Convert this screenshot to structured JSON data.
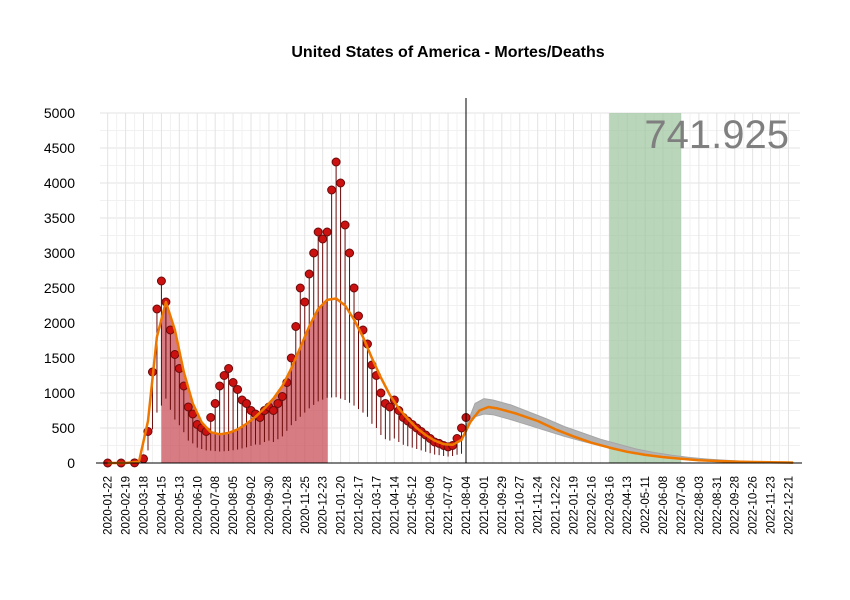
{
  "chart_data": {
    "type": "line",
    "title": "United States of America - Mortes/Deaths",
    "total_label": "741.925",
    "xlabel": "",
    "ylabel": "",
    "x_range": [
      "2020-01-10",
      "2023-01-08"
    ],
    "ylim": [
      0,
      5000
    ],
    "y_ticks": [
      0,
      500,
      1000,
      1500,
      2000,
      2500,
      3000,
      3500,
      4000,
      4500,
      5000
    ],
    "x_ticks": [
      "2020-01-22",
      "2020-02-19",
      "2020-03-18",
      "2020-04-15",
      "2020-05-13",
      "2020-06-10",
      "2020-07-08",
      "2020-08-05",
      "2020-09-02",
      "2020-09-30",
      "2020-10-28",
      "2020-11-25",
      "2020-12-23",
      "2021-01-20",
      "2021-02-17",
      "2021-03-17",
      "2021-04-14",
      "2021-05-12",
      "2021-06-09",
      "2021-07-07",
      "2021-08-04",
      "2021-09-01",
      "2021-09-29",
      "2021-10-27",
      "2021-11-24",
      "2021-12-22",
      "2022-01-19",
      "2022-02-16",
      "2022-03-16",
      "2022-04-13",
      "2022-05-11",
      "2022-06-08",
      "2022-07-06",
      "2022-08-03",
      "2022-08-31",
      "2022-09-28",
      "2022-10-26",
      "2022-11-23",
      "2022-12-21"
    ],
    "grid": true,
    "current_date_line": "2021-08-04",
    "colors": {
      "points": "#cc1111",
      "point_edge": "#6b0a0a",
      "smooth": "#ee7700",
      "filled_area": "#c9505a",
      "forecast_band": "#b3b3b3",
      "peak_window": "#9cc59c",
      "total_text": "#7f7f7f"
    },
    "series": [
      {
        "name": "daily_deaths",
        "kind": "points",
        "x": [
          "2020-01-22",
          "2020-02-12",
          "2020-03-04",
          "2020-03-18",
          "2020-03-25",
          "2020-04-01",
          "2020-04-08",
          "2020-04-15",
          "2020-04-22",
          "2020-04-29",
          "2020-05-06",
          "2020-05-13",
          "2020-05-20",
          "2020-05-27",
          "2020-06-03",
          "2020-06-10",
          "2020-06-17",
          "2020-06-24",
          "2020-07-01",
          "2020-07-08",
          "2020-07-15",
          "2020-07-22",
          "2020-07-29",
          "2020-08-05",
          "2020-08-12",
          "2020-08-19",
          "2020-08-26",
          "2020-09-02",
          "2020-09-09",
          "2020-09-16",
          "2020-09-23",
          "2020-09-30",
          "2020-10-07",
          "2020-10-14",
          "2020-10-21",
          "2020-10-28",
          "2020-11-04",
          "2020-11-11",
          "2020-11-18",
          "2020-11-25",
          "2020-12-02",
          "2020-12-09",
          "2020-12-16",
          "2020-12-23",
          "2020-12-30",
          "2021-01-06",
          "2021-01-13",
          "2021-01-20",
          "2021-01-27",
          "2021-02-03",
          "2021-02-10",
          "2021-02-17",
          "2021-02-24",
          "2021-03-03",
          "2021-03-10",
          "2021-03-17",
          "2021-03-24",
          "2021-03-31",
          "2021-04-07",
          "2021-04-14",
          "2021-04-21",
          "2021-04-28",
          "2021-05-05",
          "2021-05-12",
          "2021-05-19",
          "2021-05-26",
          "2021-06-02",
          "2021-06-09",
          "2021-06-16",
          "2021-06-23",
          "2021-06-30",
          "2021-07-07",
          "2021-07-14",
          "2021-07-21",
          "2021-07-28",
          "2021-08-04"
        ],
        "values": [
          0,
          0,
          2,
          60,
          450,
          1300,
          2200,
          2600,
          2300,
          1900,
          1550,
          1350,
          1100,
          800,
          700,
          550,
          500,
          450,
          650,
          850,
          1100,
          1250,
          1350,
          1150,
          1050,
          900,
          850,
          750,
          700,
          650,
          750,
          800,
          750,
          850,
          950,
          1150,
          1500,
          1950,
          2500,
          2300,
          2700,
          3000,
          3300,
          3200,
          3300,
          3900,
          4300,
          4000,
          3400,
          3000,
          2500,
          2100,
          1900,
          1700,
          1400,
          1250,
          1000,
          850,
          800,
          900,
          750,
          650,
          600,
          550,
          500,
          450,
          400,
          350,
          300,
          280,
          250,
          230,
          250,
          350,
          500,
          650
        ]
      },
      {
        "name": "smoothed_trend",
        "kind": "line",
        "x": [
          "2020-01-22",
          "2020-02-19",
          "2020-03-11",
          "2020-03-25",
          "2020-04-08",
          "2020-04-22",
          "2020-05-06",
          "2020-05-20",
          "2020-06-03",
          "2020-06-17",
          "2020-07-01",
          "2020-07-15",
          "2020-07-29",
          "2020-08-12",
          "2020-08-26",
          "2020-09-09",
          "2020-09-23",
          "2020-10-07",
          "2020-10-21",
          "2020-11-04",
          "2020-11-18",
          "2020-12-02",
          "2020-12-16",
          "2020-12-30",
          "2021-01-13",
          "2021-01-27",
          "2021-02-10",
          "2021-02-24",
          "2021-03-10",
          "2021-03-24",
          "2021-04-07",
          "2021-04-21",
          "2021-05-05",
          "2021-05-19",
          "2021-06-02",
          "2021-06-16",
          "2021-06-30",
          "2021-07-14",
          "2021-07-28",
          "2021-08-11",
          "2021-08-25",
          "2021-09-08",
          "2021-09-22",
          "2021-10-20",
          "2021-11-24",
          "2021-12-22",
          "2022-01-19",
          "2022-02-16",
          "2022-03-16",
          "2022-04-13",
          "2022-05-11",
          "2022-06-08",
          "2022-07-06",
          "2022-08-03",
          "2022-08-31",
          "2022-09-28",
          "2022-10-26",
          "2022-11-23",
          "2022-12-21",
          "2022-12-28"
        ],
        "values": [
          0,
          0,
          20,
          600,
          1800,
          2300,
          1900,
          1300,
          850,
          580,
          440,
          410,
          430,
          480,
          560,
          660,
          780,
          920,
          1100,
          1350,
          1650,
          1950,
          2200,
          2330,
          2350,
          2250,
          2050,
          1800,
          1500,
          1220,
          970,
          780,
          630,
          500,
          400,
          320,
          270,
          260,
          330,
          590,
          750,
          800,
          780,
          710,
          600,
          480,
          380,
          290,
          220,
          160,
          115,
          85,
          60,
          40,
          28,
          20,
          14,
          10,
          7,
          5
        ]
      },
      {
        "name": "forecast_band_upper",
        "kind": "band_upper",
        "x": [
          "2021-08-04",
          "2021-08-18",
          "2021-09-01",
          "2021-09-15",
          "2021-10-13",
          "2021-11-10",
          "2021-12-08",
          "2022-01-05",
          "2022-02-02",
          "2022-03-02",
          "2022-03-30",
          "2022-04-27",
          "2022-05-25",
          "2022-06-22",
          "2022-07-20",
          "2022-08-17",
          "2022-09-14",
          "2022-10-12",
          "2022-11-09",
          "2022-12-07",
          "2022-12-28"
        ],
        "values": [
          520,
          850,
          920,
          900,
          830,
          730,
          630,
          520,
          430,
          340,
          270,
          200,
          150,
          110,
          78,
          55,
          38,
          26,
          18,
          12,
          8
        ]
      },
      {
        "name": "forecast_band_lower",
        "kind": "band_lower",
        "x": [
          "2021-08-04",
          "2021-08-18",
          "2021-09-01",
          "2021-09-15",
          "2021-10-13",
          "2021-11-10",
          "2021-12-08",
          "2022-01-05",
          "2022-02-02",
          "2022-03-02",
          "2022-03-30",
          "2022-04-27",
          "2022-05-25",
          "2022-06-22",
          "2022-07-20",
          "2022-08-17",
          "2022-09-14",
          "2022-10-12",
          "2022-11-09",
          "2022-12-07",
          "2022-12-28"
        ],
        "values": [
          480,
          660,
          700,
          690,
          620,
          540,
          460,
          380,
          310,
          245,
          190,
          145,
          105,
          76,
          55,
          38,
          26,
          18,
          12,
          8,
          5
        ]
      }
    ],
    "filled_region": {
      "from": "2020-04-15",
      "to": "2020-12-31",
      "note": "area under smoothed trend"
    },
    "peak_window": {
      "from": "2022-03-16",
      "to": "2022-07-06"
    }
  }
}
